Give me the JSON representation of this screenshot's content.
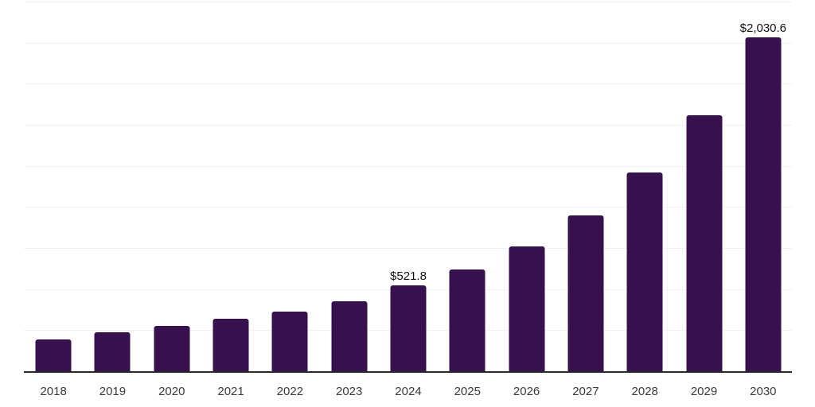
{
  "chart_data": {
    "type": "bar",
    "title": "",
    "xlabel": "",
    "ylabel": "",
    "categories": [
      "2018",
      "2019",
      "2020",
      "2021",
      "2022",
      "2023",
      "2024",
      "2025",
      "2026",
      "2027",
      "2028",
      "2029",
      "2030"
    ],
    "values": [
      193,
      237,
      275,
      319,
      362,
      425,
      521.8,
      620,
      760,
      950,
      1210,
      1560,
      2030.6
    ],
    "data_labels": [
      "",
      "",
      "",
      "",
      "",
      "",
      "$521.8",
      "",
      "",
      "",
      "",
      "",
      "$2,030.6"
    ],
    "ylim": [
      0,
      2250
    ],
    "gridline_step": 250,
    "grid": true,
    "legend": false
  },
  "style": {
    "bar_color": "#37114d",
    "grid_color": "#f2f2f2",
    "axis_color": "#2b2b2b",
    "data_label_color": "#111111",
    "tick_label_color": "#3a3a3a",
    "background": "#ffffff"
  }
}
